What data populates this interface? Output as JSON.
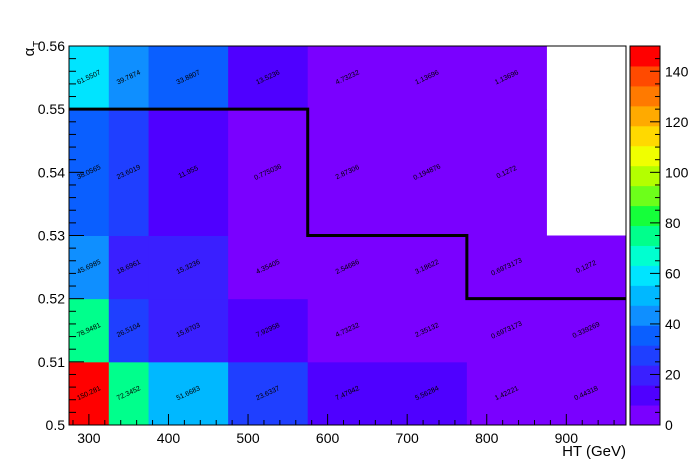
{
  "chart_data": {
    "type": "heatmap",
    "xlabel": "HT (GeV)",
    "ylabel": "α",
    "ylabel_sub": "T",
    "x_bin_edges": [
      275,
      325,
      375,
      475,
      575,
      675,
      775,
      875,
      975
    ],
    "y_bin_edges": [
      0.5,
      0.51,
      0.52,
      0.53,
      0.55,
      0.56
    ],
    "xlim": [
      275,
      975
    ],
    "ylim": [
      0.5,
      0.56
    ],
    "x_ticks": [
      "300",
      "400",
      "500",
      "600",
      "700",
      "800",
      "900"
    ],
    "y_ticks": [
      "0.5",
      "0.51",
      "0.52",
      "0.53",
      "0.54",
      "0.55",
      "0.56"
    ],
    "z_range": [
      0,
      150
    ],
    "z_ticks": [
      "0",
      "20",
      "40",
      "60",
      "80",
      "100",
      "120",
      "140"
    ],
    "palette": [
      "#7a00ff",
      "#4f00ff",
      "#3a1fff",
      "#1f3fff",
      "#0a5fff",
      "#0f8fff",
      "#00b8ff",
      "#00e4ff",
      "#00ffd0",
      "#00ff8c",
      "#15ff3a",
      "#6dff1a",
      "#b4ff00",
      "#f0ff00",
      "#ffd900",
      "#ffaa00",
      "#ff7a00",
      "#ff4a00",
      "#ff0000"
    ],
    "cells": [
      {
        "ix": 0,
        "iy": 0,
        "value": 150.281,
        "label": "150.281"
      },
      {
        "ix": 1,
        "iy": 0,
        "value": 72.3452,
        "label": "72.3452"
      },
      {
        "ix": 2,
        "iy": 0,
        "value": 51.6683,
        "label": "51.6683"
      },
      {
        "ix": 3,
        "iy": 0,
        "value": 23.6337,
        "label": "23.6337"
      },
      {
        "ix": 4,
        "iy": 0,
        "value": 7.47942,
        "label": "7.47942"
      },
      {
        "ix": 5,
        "iy": 0,
        "value": 5.56284,
        "label": "5.56284"
      },
      {
        "ix": 6,
        "iy": 0,
        "value": 1.42221,
        "label": "1.42221"
      },
      {
        "ix": 7,
        "iy": 0,
        "value": 0.44318,
        "label": "0.44318"
      },
      {
        "ix": 0,
        "iy": 1,
        "value": 78.9481,
        "label": "78.9481"
      },
      {
        "ix": 1,
        "iy": 1,
        "value": 26.5104,
        "label": "26.5104"
      },
      {
        "ix": 2,
        "iy": 1,
        "value": 15.8703,
        "label": "15.8703"
      },
      {
        "ix": 3,
        "iy": 1,
        "value": 7.92958,
        "label": "7.92958"
      },
      {
        "ix": 4,
        "iy": 1,
        "value": 4.73232,
        "label": "4.73232"
      },
      {
        "ix": 5,
        "iy": 1,
        "value": 2.35132,
        "label": "2.35132"
      },
      {
        "ix": 6,
        "iy": 1,
        "value": 0.6973173,
        "label": "0.6973173"
      },
      {
        "ix": 7,
        "iy": 1,
        "value": 0.339269,
        "label": "0.339269"
      },
      {
        "ix": 0,
        "iy": 2,
        "value": 45.6985,
        "label": "45.6985"
      },
      {
        "ix": 1,
        "iy": 2,
        "value": 18.6961,
        "label": "18.6961"
      },
      {
        "ix": 2,
        "iy": 2,
        "value": 15.3236,
        "label": "15.3236"
      },
      {
        "ix": 3,
        "iy": 2,
        "value": 4.35405,
        "label": "4.35405"
      },
      {
        "ix": 4,
        "iy": 2,
        "value": 2.54686,
        "label": "2.54686"
      },
      {
        "ix": 5,
        "iy": 2,
        "value": 3.18622,
        "label": "3.18622"
      },
      {
        "ix": 6,
        "iy": 2,
        "value": 0.6973173,
        "label": "0.6973173"
      },
      {
        "ix": 7,
        "iy": 2,
        "value": 0.1272,
        "label": "0.1272"
      },
      {
        "ix": 0,
        "iy": 3,
        "value": 38.0565,
        "label": "38.0565"
      },
      {
        "ix": 1,
        "iy": 3,
        "value": 23.6019,
        "label": "23.6019"
      },
      {
        "ix": 2,
        "iy": 3,
        "value": 11.955,
        "label": "11.955"
      },
      {
        "ix": 3,
        "iy": 3,
        "value": 0.775036,
        "label": "0.775036"
      },
      {
        "ix": 4,
        "iy": 3,
        "value": 2.87306,
        "label": "2.87306"
      },
      {
        "ix": 5,
        "iy": 3,
        "value": 0.194876,
        "label": "0.194876"
      },
      {
        "ix": 6,
        "iy": 3,
        "value": 0.1272,
        "label": "0.1272"
      },
      {
        "ix": 0,
        "iy": 4,
        "value": 61.5507,
        "label": "61.5507"
      },
      {
        "ix": 1,
        "iy": 4,
        "value": 39.7874,
        "label": "39.7874"
      },
      {
        "ix": 2,
        "iy": 4,
        "value": 33.8807,
        "label": "33.8807"
      },
      {
        "ix": 3,
        "iy": 4,
        "value": 13.5236,
        "label": "13.5236"
      },
      {
        "ix": 4,
        "iy": 4,
        "value": 4.73232,
        "label": "4.73232"
      },
      {
        "ix": 5,
        "iy": 4,
        "value": 1.13696,
        "label": "1.13696"
      },
      {
        "ix": 6,
        "iy": 4,
        "value": 1.13696,
        "label": "1.13696"
      }
    ],
    "cut_line": [
      [
        275,
        0.55
      ],
      [
        575,
        0.55
      ],
      [
        575,
        0.53
      ],
      [
        775,
        0.53
      ],
      [
        775,
        0.52
      ],
      [
        975,
        0.52
      ]
    ]
  }
}
